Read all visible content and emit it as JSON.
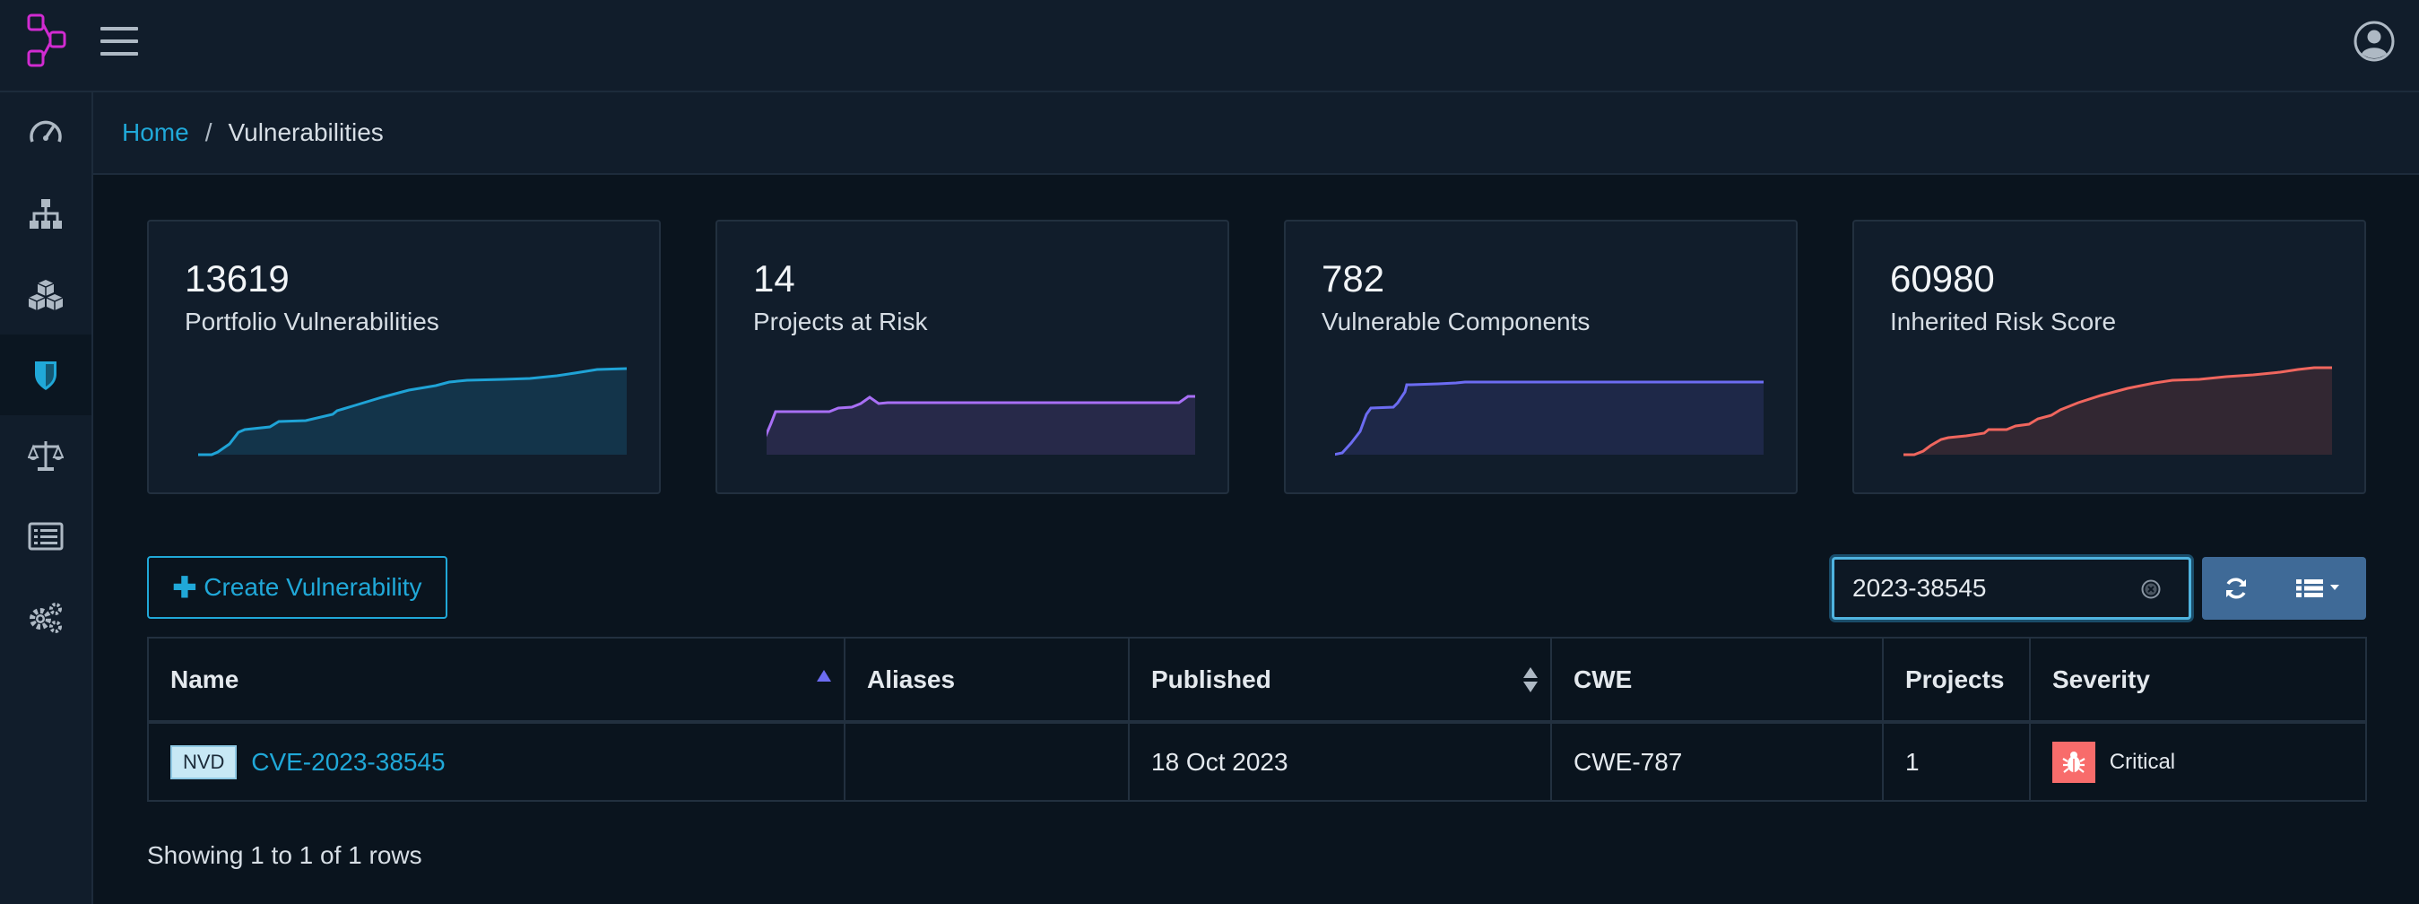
{
  "header": {
    "logo_icon": "dependency-track-logo",
    "menu_icon": "hamburger-icon",
    "profile_icon": "user-circle-icon"
  },
  "sidebar": {
    "items": [
      {
        "icon": "dashboard-icon",
        "label": "Dashboard"
      },
      {
        "icon": "sitemap-icon",
        "label": "Projects"
      },
      {
        "icon": "cubes-icon",
        "label": "Components"
      },
      {
        "icon": "shield-icon",
        "label": "Vulnerabilities",
        "active": true
      },
      {
        "icon": "balance-scale-icon",
        "label": "License"
      },
      {
        "icon": "list-alt-icon",
        "label": "Policy"
      },
      {
        "icon": "gears-icon",
        "label": "Administration"
      }
    ]
  },
  "breadcrumb": {
    "home": "Home",
    "separator": "/",
    "current": "Vulnerabilities"
  },
  "cards": [
    {
      "value": "13619",
      "label": "Portfolio Vulnerabilities",
      "color": "#1fa3d6"
    },
    {
      "value": "14",
      "label": "Projects at Risk",
      "color": "#a86ff5"
    },
    {
      "value": "782",
      "label": "Vulnerable Components",
      "color": "#6c6cf2"
    },
    {
      "value": "60980",
      "label": "Inherited Risk Score",
      "color": "#f0665e"
    }
  ],
  "toolbar": {
    "create_label": "Create Vulnerability",
    "create_icon": "plus-icon",
    "search_value": "2023-38545",
    "clear_icon": "clear-circle-icon",
    "refresh_icon": "refresh-icon",
    "columns_icon": "list-columns-icon"
  },
  "table": {
    "headers": {
      "name": "Name",
      "aliases": "Aliases",
      "published": "Published",
      "cwe": "CWE",
      "projects": "Projects",
      "severity": "Severity"
    },
    "rows": [
      {
        "source": "NVD",
        "name": "CVE-2023-38545",
        "aliases": "",
        "published": "18 Oct 2023",
        "cwe": "CWE-787",
        "projects": "1",
        "severity": "Critical",
        "severity_color": "#f86c6b",
        "severity_icon": "bug-icon"
      }
    ]
  },
  "footer": {
    "showing": "Showing 1 to 1 of 1 rows"
  }
}
